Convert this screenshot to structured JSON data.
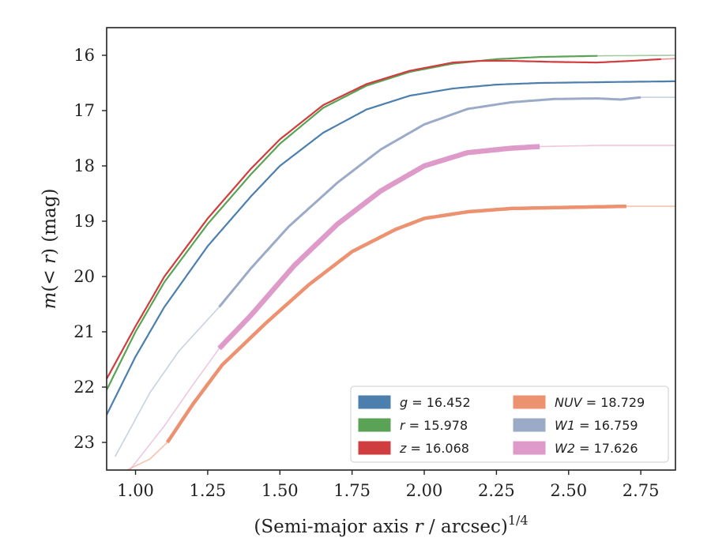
{
  "chart_data": {
    "type": "line",
    "title": "",
    "xlabel": "(Semi-major axis r / arcsec)^1/4",
    "ylabel": "m(< r) (mag)",
    "xlim": [
      0.9,
      2.87
    ],
    "ylim": [
      23.5,
      15.5
    ],
    "y_inverted": true,
    "grid": false,
    "xticks": [
      {
        "value": 1.0,
        "label": "1.00"
      },
      {
        "value": 1.25,
        "label": "1.25"
      },
      {
        "value": 1.5,
        "label": "1.50"
      },
      {
        "value": 1.75,
        "label": "1.75"
      },
      {
        "value": 2.0,
        "label": "2.00"
      },
      {
        "value": 2.25,
        "label": "2.25"
      },
      {
        "value": 2.5,
        "label": "2.50"
      },
      {
        "value": 2.75,
        "label": "2.75"
      }
    ],
    "yticks": [
      {
        "value": 16,
        "label": "16"
      },
      {
        "value": 17,
        "label": "17"
      },
      {
        "value": 18,
        "label": "18"
      },
      {
        "value": 19,
        "label": "19"
      },
      {
        "value": 20,
        "label": "20"
      },
      {
        "value": 21,
        "label": "21"
      },
      {
        "value": 22,
        "label": "22"
      },
      {
        "value": 23,
        "label": "23"
      }
    ],
    "legend_position": "lower-right",
    "series": [
      {
        "band": "g",
        "value_text": "= 16.452",
        "color": "#4c7fae",
        "measured_range": [
          0.9,
          2.87
        ],
        "x": [
          0.9,
          1.0,
          1.1,
          1.25,
          1.4,
          1.5,
          1.65,
          1.8,
          1.95,
          2.1,
          2.25,
          2.4,
          2.55,
          2.7,
          2.87
        ],
        "y": [
          22.5,
          21.45,
          20.55,
          19.45,
          18.55,
          18.0,
          17.4,
          16.98,
          16.73,
          16.6,
          16.53,
          16.5,
          16.49,
          16.48,
          16.47
        ]
      },
      {
        "band": "r",
        "value_text": "= 15.978",
        "color": "#5aa356",
        "measured_range": [
          0.9,
          2.6
        ],
        "x": [
          0.9,
          1.0,
          1.1,
          1.25,
          1.4,
          1.5,
          1.65,
          1.8,
          1.95,
          2.1,
          2.25,
          2.4,
          2.6,
          2.87
        ],
        "y": [
          22.05,
          21.0,
          20.1,
          19.05,
          18.15,
          17.6,
          16.95,
          16.55,
          16.3,
          16.15,
          16.07,
          16.03,
          16.01,
          16.0
        ]
      },
      {
        "band": "z",
        "value_text": "= 16.068",
        "color": "#d03d3e",
        "measured_range": [
          0.9,
          2.82
        ],
        "x": [
          0.9,
          1.0,
          1.1,
          1.25,
          1.4,
          1.5,
          1.65,
          1.8,
          1.95,
          2.1,
          2.2,
          2.3,
          2.45,
          2.6,
          2.72,
          2.82,
          2.87
        ],
        "y": [
          21.85,
          20.9,
          20.0,
          18.95,
          18.05,
          17.52,
          16.9,
          16.52,
          16.28,
          16.13,
          16.1,
          16.1,
          16.12,
          16.13,
          16.1,
          16.07,
          16.06
        ]
      },
      {
        "band": "NUV",
        "value_text": "= 18.729",
        "color": "#ec9270",
        "measured_range": [
          1.11,
          2.7
        ],
        "x": [
          0.97,
          1.05,
          1.11,
          1.2,
          1.3,
          1.45,
          1.6,
          1.75,
          1.9,
          2.0,
          2.15,
          2.3,
          2.5,
          2.7,
          2.87
        ],
        "y": [
          23.5,
          23.3,
          23.0,
          22.3,
          21.6,
          20.85,
          20.15,
          19.55,
          19.15,
          18.95,
          18.83,
          18.77,
          18.75,
          18.73,
          18.73
        ]
      },
      {
        "band": "W1",
        "value_text": "= 16.759",
        "color": "#9babc7",
        "measured_range": [
          1.29,
          2.75
        ],
        "x": [
          0.93,
          1.05,
          1.15,
          1.29,
          1.4,
          1.53,
          1.7,
          1.85,
          2.0,
          2.15,
          2.3,
          2.45,
          2.6,
          2.68,
          2.75,
          2.87
        ],
        "y": [
          23.25,
          22.1,
          21.35,
          20.55,
          19.85,
          19.1,
          18.3,
          17.7,
          17.25,
          16.97,
          16.85,
          16.79,
          16.78,
          16.8,
          16.76,
          16.76
        ]
      },
      {
        "band": "W2",
        "value_text": "= 17.626",
        "color": "#de9bc9",
        "measured_range": [
          1.29,
          2.4
        ],
        "x": [
          0.98,
          1.1,
          1.2,
          1.29,
          1.4,
          1.55,
          1.7,
          1.85,
          2.0,
          2.15,
          2.3,
          2.4,
          2.6,
          2.87
        ],
        "y": [
          23.5,
          22.7,
          21.95,
          21.3,
          20.7,
          19.8,
          19.05,
          18.45,
          18.0,
          17.76,
          17.68,
          17.65,
          17.63,
          17.63
        ]
      }
    ]
  }
}
